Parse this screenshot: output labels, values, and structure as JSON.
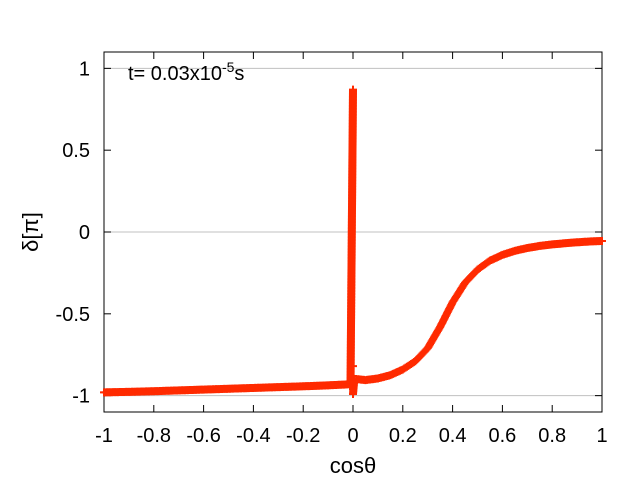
{
  "chart_data": {
    "type": "scatter",
    "title": "",
    "xlabel": "cosθ",
    "ylabel": "δ[π]",
    "xlim": [
      -1,
      1
    ],
    "ylim": [
      -1.1,
      1.1
    ],
    "xticks": [
      -1,
      -0.8,
      -0.6,
      -0.4,
      -0.2,
      0,
      0.2,
      0.4,
      0.6,
      0.8,
      1
    ],
    "xtick_labels": [
      "-1",
      "-0.8",
      "-0.6",
      "-0.4",
      "-0.2",
      "0",
      "0.2",
      "0.4",
      "0.6",
      "0.8",
      "1"
    ],
    "yticks": [
      -1,
      -0.5,
      0,
      0.5,
      1
    ],
    "ytick_labels": [
      "-1",
      "-0.5",
      "0",
      "0.5",
      "1"
    ],
    "grid_y": [
      -1,
      0,
      1
    ],
    "marker": "+",
    "colors": {
      "series": "#ff2a00",
      "grid": "#c0c0c0",
      "axes": "#000000"
    },
    "annotation": {
      "base": "t=  0.03x10",
      "exponent": "-5",
      "unit": "s"
    },
    "series": [
      {
        "points": [
          [
            -1.0,
            -0.98
          ],
          [
            -0.9,
            -0.977
          ],
          [
            -0.8,
            -0.973
          ],
          [
            -0.7,
            -0.968
          ],
          [
            -0.6,
            -0.963
          ],
          [
            -0.5,
            -0.958
          ],
          [
            -0.4,
            -0.953
          ],
          [
            -0.3,
            -0.948
          ],
          [
            -0.2,
            -0.943
          ],
          [
            -0.1,
            -0.937
          ],
          [
            -0.03,
            -0.932
          ],
          [
            -0.01,
            -0.93
          ],
          [
            0.0,
            0.87
          ],
          [
            0.0,
            -0.82
          ],
          [
            0.0,
            -0.88
          ],
          [
            0.0,
            -0.93
          ],
          [
            0.0,
            -0.96
          ],
          [
            0.0,
            -0.99
          ],
          [
            0.005,
            -0.905
          ],
          [
            0.02,
            -0.9
          ],
          [
            0.05,
            -0.905
          ],
          [
            0.1,
            -0.895
          ],
          [
            0.15,
            -0.875
          ],
          [
            0.2,
            -0.84
          ],
          [
            0.25,
            -0.79
          ],
          [
            0.3,
            -0.71
          ],
          [
            0.35,
            -0.58
          ],
          [
            0.4,
            -0.43
          ],
          [
            0.45,
            -0.31
          ],
          [
            0.5,
            -0.23
          ],
          [
            0.55,
            -0.175
          ],
          [
            0.6,
            -0.14
          ],
          [
            0.65,
            -0.115
          ],
          [
            0.7,
            -0.098
          ],
          [
            0.75,
            -0.085
          ],
          [
            0.8,
            -0.076
          ],
          [
            0.85,
            -0.069
          ],
          [
            0.9,
            -0.063
          ],
          [
            0.95,
            -0.058
          ],
          [
            1.0,
            -0.055
          ]
        ]
      }
    ]
  }
}
